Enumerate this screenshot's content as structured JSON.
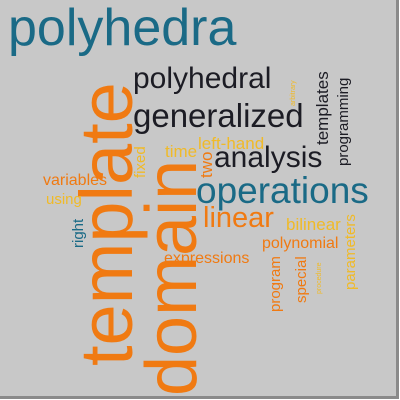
{
  "palette": {
    "background": "#c8c8c8",
    "teal": "#1a6a86",
    "dark": "#1c1c24",
    "orange": "#f07a12",
    "yellow": "#f0ba28"
  },
  "words": {
    "polyhedra": "polyhedra",
    "template": "template",
    "domain": "domain",
    "polyhedral": "polyhedral",
    "generalized": "generalized",
    "operations": "operations",
    "analysis": "analysis",
    "linear": "linear",
    "templates": "templates",
    "programming": "programming",
    "time": "time",
    "left_hand": "left-hand",
    "two": "two",
    "fixed": "fixed",
    "variables": "variables",
    "using": "using",
    "right": "right",
    "bilinear": "bilinear",
    "polynomial": "polynomial",
    "expressions": "expressions",
    "parameters": "parameters",
    "program": "program",
    "special": "special",
    "arbitrary": "arbitrary",
    "procedure": "procedure"
  }
}
